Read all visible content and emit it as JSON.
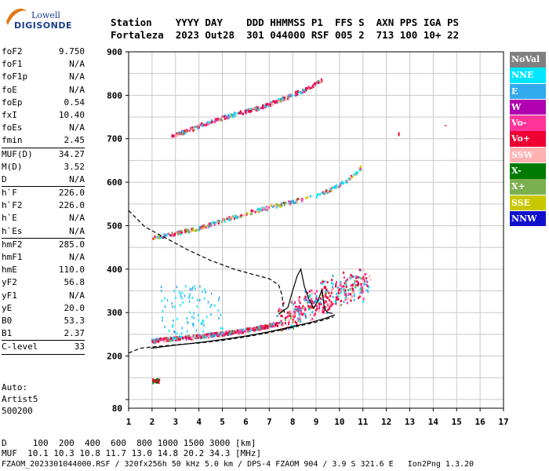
{
  "logo": {
    "line1": "Lowell",
    "line2": "DIGISONDE"
  },
  "header": {
    "line1": "Station    YYYY DAY    DDD HHMMSS P1  FFS S  AXN PPS IGA PS",
    "line2": "Fortaleza  2023 Out28  301 044000 RSF 005 2  713 100 10+ 22"
  },
  "params": [
    [
      {
        "label": "foF2",
        "value": "9.750"
      },
      {
        "label": "foF1",
        "value": "N/A"
      },
      {
        "label": "foF1p",
        "value": "N/A"
      },
      {
        "label": "foE",
        "value": "N/A"
      },
      {
        "label": "foEp",
        "value": "0.54"
      },
      {
        "label": "fxI",
        "value": "10.40"
      },
      {
        "label": "foEs",
        "value": "N/A"
      },
      {
        "label": "fmin",
        "value": "2.45"
      }
    ],
    [
      {
        "label": "MUF(D)",
        "value": "34.27"
      },
      {
        "label": "M(D)",
        "value": "3.52"
      },
      {
        "label": "D",
        "value": "N/A"
      }
    ],
    [
      {
        "label": "h`F",
        "value": "226.0"
      },
      {
        "label": "h`F2",
        "value": "226.0"
      },
      {
        "label": "h`E",
        "value": "N/A"
      },
      {
        "label": "h`Es",
        "value": "N/A"
      }
    ],
    [
      {
        "label": "hmF2",
        "value": "285.0"
      },
      {
        "label": "hmF1",
        "value": "N/A"
      },
      {
        "label": "hmE",
        "value": "110.0"
      },
      {
        "label": "yF2",
        "value": "56.8"
      },
      {
        "label": "yF1",
        "value": "N/A"
      },
      {
        "label": "yE",
        "value": "20.0"
      },
      {
        "label": "B0",
        "value": "53.3"
      },
      {
        "label": "B1",
        "value": "2.37"
      }
    ],
    [
      {
        "label": "C-level",
        "value": "33"
      }
    ]
  ],
  "extra": {
    "auto": "Auto:",
    "artist": "Artist5",
    "code": "500200"
  },
  "legend": [
    {
      "label": "NoVal",
      "color": "#808080"
    },
    {
      "label": "NNE",
      "color": "#00e5ff"
    },
    {
      "label": "E",
      "color": "#33aaee"
    },
    {
      "label": "W",
      "color": "#b000b0"
    },
    {
      "label": "Vo-",
      "color": "#ff3399"
    },
    {
      "label": "Vo+",
      "color": "#ee0033"
    },
    {
      "label": "SSW",
      "color": "#ffb0b0"
    },
    {
      "label": "X-",
      "color": "#007a00"
    },
    {
      "label": "X+",
      "color": "#7ab050"
    },
    {
      "label": "SSE",
      "color": "#c8c800"
    },
    {
      "label": "NNW",
      "color": "#1010cc"
    }
  ],
  "footer": {
    "line1": "D     100  200  400  600  800 1000 1500 3000 [km]",
    "line2": "MUF  10.1 10.3 10.8 11.7 13.0 14.8 20.2 34.3 [MHz]",
    "line3": "FZAOM_2023301044000.RSF / 320fx256h 50 kHz 5.0 km / DPS-4 FZAOM 904 / 3.9 S 321.6 E   Ion2Png 1.3.20"
  },
  "chart_data": {
    "type": "scatter",
    "xlim": [
      1,
      17
    ],
    "ylim": [
      80,
      900
    ],
    "x_ticks": [
      1,
      2,
      3,
      4,
      5,
      6,
      7,
      8,
      9,
      10,
      11,
      12,
      13,
      14,
      15,
      16,
      17
    ],
    "y_ticks": [
      100,
      200,
      300,
      400,
      500,
      600,
      700,
      800,
      900
    ],
    "y_tick_labels": [
      "",
      "200",
      "300",
      "400",
      "500",
      "600",
      "700",
      "800",
      "900"
    ],
    "y_bottom_label": "80",
    "grid": true,
    "traces": [
      {
        "mode": "O",
        "band": [
          [
            1.95,
            232
          ],
          [
            2.5,
            236
          ],
          [
            3.5,
            240
          ],
          [
            4.5,
            246
          ],
          [
            5.5,
            253
          ],
          [
            6.5,
            262
          ],
          [
            7.3,
            272
          ],
          [
            8.0,
            285
          ],
          [
            8.5,
            300
          ],
          [
            9.0,
            318
          ],
          [
            9.5,
            332
          ],
          [
            10.0,
            342
          ],
          [
            10.5,
            352
          ],
          [
            11.3,
            358
          ]
        ]
      },
      {
        "mode": "X",
        "band": [
          [
            2.0,
            470
          ],
          [
            3.0,
            480
          ],
          [
            4.0,
            492
          ],
          [
            5.0,
            510
          ],
          [
            6.0,
            526
          ],
          [
            7.0,
            540
          ],
          [
            8.0,
            553
          ],
          [
            9.0,
            567
          ],
          [
            9.6,
            580
          ],
          [
            10.4,
            605
          ],
          [
            10.9,
            632
          ]
        ]
      },
      {
        "mode": "O",
        "band": [
          [
            2.8,
            703
          ],
          [
            3.5,
            716
          ],
          [
            4.5,
            738
          ],
          [
            5.5,
            754
          ],
          [
            6.5,
            768
          ],
          [
            7.5,
            788
          ],
          [
            8.5,
            810
          ],
          [
            9.0,
            826
          ],
          [
            9.3,
            834
          ]
        ]
      },
      {
        "mode": "O",
        "band": [
          [
            2.0,
            140
          ],
          [
            2.3,
            141
          ]
        ]
      }
    ],
    "profile_dashed": [
      [
        1.0,
        535
      ],
      [
        1.7,
        497
      ],
      [
        2.5,
        474
      ],
      [
        3.5,
        445
      ],
      [
        4.5,
        420
      ],
      [
        5.5,
        400
      ],
      [
        6.5,
        385
      ],
      [
        7.0,
        378
      ],
      [
        7.4,
        364
      ],
      [
        7.55,
        340
      ],
      [
        7.6,
        310
      ],
      [
        7.65,
        300
      ]
    ],
    "profile_dashed_low": [
      [
        1.0,
        207
      ],
      [
        1.5,
        218
      ],
      [
        2.2,
        222
      ],
      [
        3.0,
        226
      ],
      [
        4.0,
        230
      ],
      [
        5.0,
        236
      ],
      [
        6.0,
        244
      ],
      [
        7.0,
        254
      ],
      [
        8.0,
        266
      ],
      [
        9.0,
        278
      ],
      [
        9.75,
        290
      ]
    ],
    "profile_solid": [
      [
        1.95,
        218
      ],
      [
        3.0,
        225
      ],
      [
        4.0,
        231
      ],
      [
        5.0,
        238
      ],
      [
        6.0,
        246
      ],
      [
        7.0,
        256
      ],
      [
        8.0,
        268
      ],
      [
        8.8,
        278
      ],
      [
        9.4,
        287
      ],
      [
        9.8,
        295
      ]
    ],
    "trace_solid": [
      [
        7.4,
        296
      ],
      [
        7.8,
        312
      ],
      [
        8.0,
        350
      ],
      [
        8.2,
        385
      ],
      [
        8.35,
        400
      ],
      [
        8.5,
        360
      ],
      [
        8.7,
        330
      ],
      [
        8.9,
        310
      ],
      [
        9.1,
        330
      ],
      [
        9.25,
        353
      ],
      [
        9.35,
        310
      ],
      [
        9.5,
        300
      ],
      [
        9.7,
        298
      ]
    ]
  }
}
